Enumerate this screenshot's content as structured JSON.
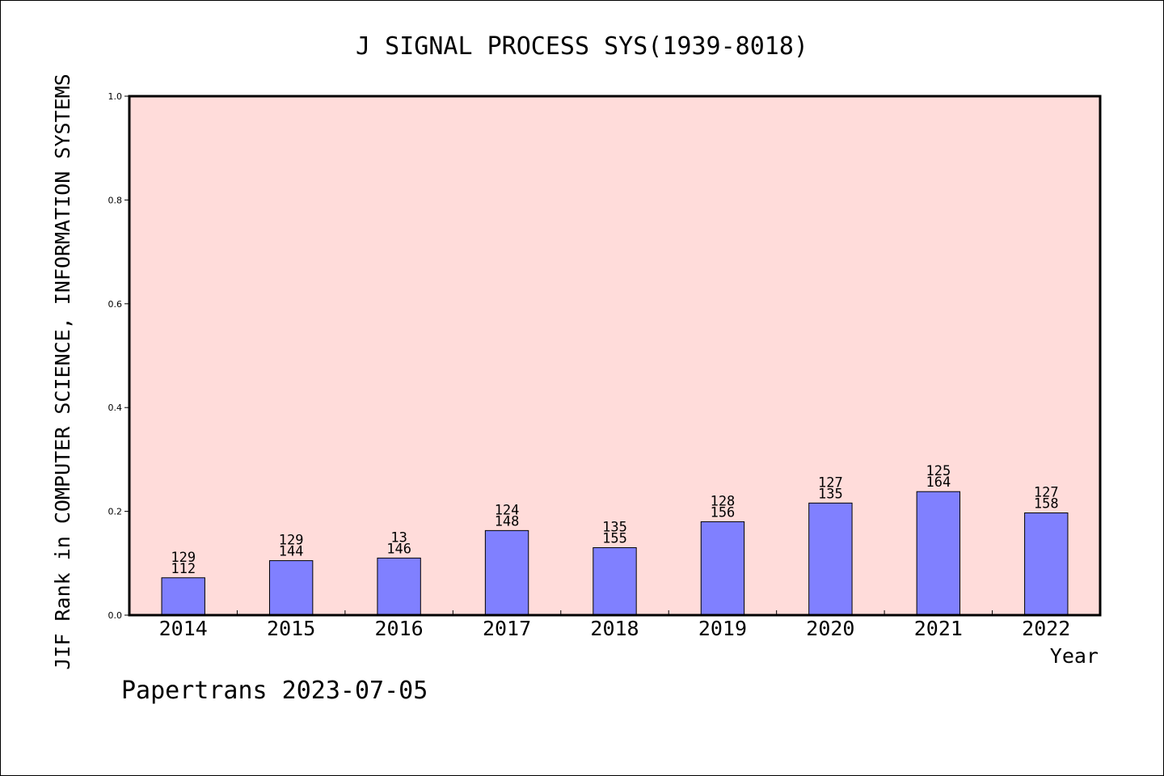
{
  "chart_data": {
    "type": "bar",
    "title": "J SIGNAL PROCESS SYS(1939-8018)",
    "xlabel": "Year",
    "ylabel": "JIF Rank in COMPUTER SCIENCE, INFORMATION SYSTEMS",
    "ylim": [
      0,
      1.0
    ],
    "yticks": [
      "0.0",
      "0.2",
      "0.4",
      "0.6",
      "0.8",
      "1.0"
    ],
    "grid": false,
    "categories": [
      "2014",
      "2015",
      "2016",
      "2017",
      "2018",
      "2019",
      "2020",
      "2021",
      "2022"
    ],
    "values": [
      0.072,
      0.105,
      0.11,
      0.163,
      0.13,
      0.18,
      0.216,
      0.238,
      0.197
    ],
    "labels": [
      [
        "129",
        "112"
      ],
      [
        "129",
        "144"
      ],
      [
        "13",
        "146"
      ],
      [
        "124",
        "148"
      ],
      [
        "135",
        "155"
      ],
      [
        "128",
        "156"
      ],
      [
        "127",
        "135"
      ],
      [
        "125",
        "164"
      ],
      [
        "127",
        "158"
      ]
    ],
    "colors": {
      "bar": "#8080ff",
      "plot_background": "#ffdcda",
      "axis": "#000000"
    }
  },
  "footer": {
    "credit": "Papertrans 2023-07-05"
  }
}
